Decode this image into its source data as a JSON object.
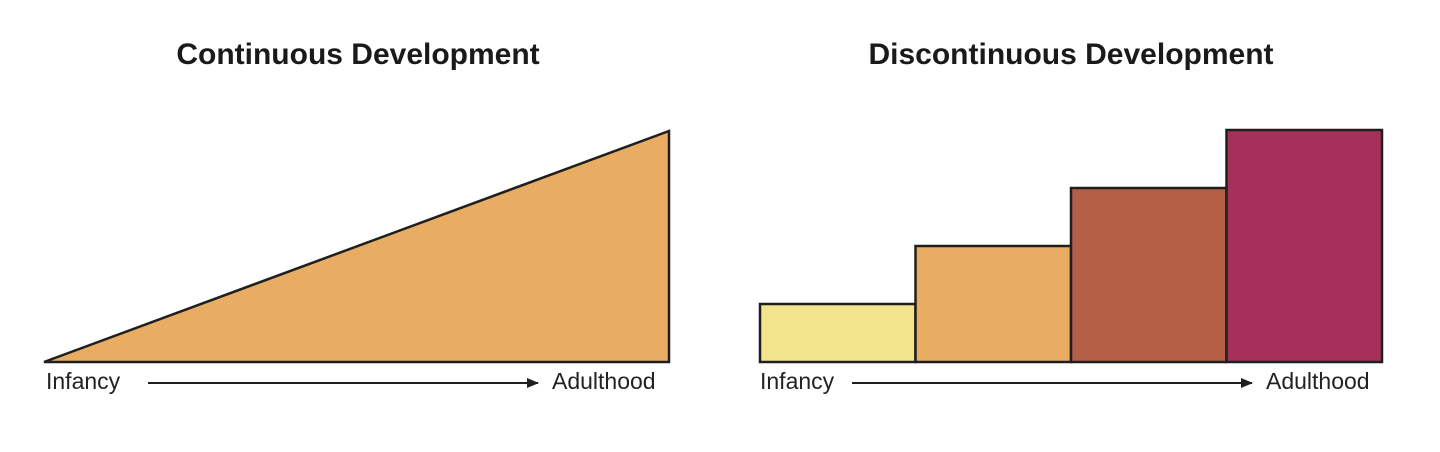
{
  "continuous": {
    "title": "Continuous Development",
    "start_label": "Infancy",
    "end_label": "Adulthood",
    "fill_color": "#e8ad63"
  },
  "discontinuous": {
    "title": "Discontinuous Development",
    "start_label": "Infancy",
    "end_label": "Adulthood",
    "steps": [
      {
        "level": 1,
        "color": "#f2e58e"
      },
      {
        "level": 2,
        "color": "#e8ad63"
      },
      {
        "level": 3,
        "color": "#b55e46"
      },
      {
        "level": 4,
        "color": "#a5305a"
      }
    ]
  },
  "colors": {
    "outline": "#1f1f1f",
    "arrow": "#1f1f1f"
  }
}
